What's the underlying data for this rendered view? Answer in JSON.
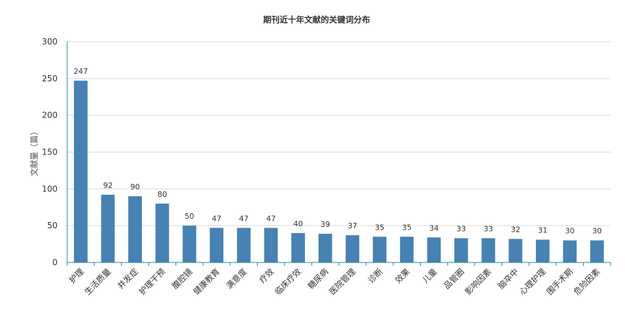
{
  "chart_data": {
    "type": "bar",
    "title": "期刊近十年文献的关键词分布",
    "ylabel": "文献量（篇）",
    "xlabel": "",
    "ylim": [
      0,
      300
    ],
    "yticks": [
      0,
      50,
      100,
      150,
      200,
      250,
      300
    ],
    "grid": true,
    "categories": [
      "护理",
      "生活质量",
      "并发症",
      "护理干预",
      "腹腔镜",
      "健康教育",
      "满意度",
      "疗效",
      "临床疗效",
      "糖尿病",
      "医院管理",
      "诊断",
      "效果",
      "儿童",
      "品管圈",
      "影响因素",
      "脑卒中",
      "心理护理",
      "围手术期",
      "危险因素"
    ],
    "values": [
      247,
      92,
      90,
      80,
      50,
      47,
      47,
      47,
      40,
      39,
      37,
      35,
      35,
      34,
      33,
      33,
      32,
      31,
      30,
      30
    ],
    "colors": {
      "bar": "#4682b4",
      "axis": "#1f8a9e",
      "grid": "#d9d9d9",
      "text": "#333333"
    }
  }
}
